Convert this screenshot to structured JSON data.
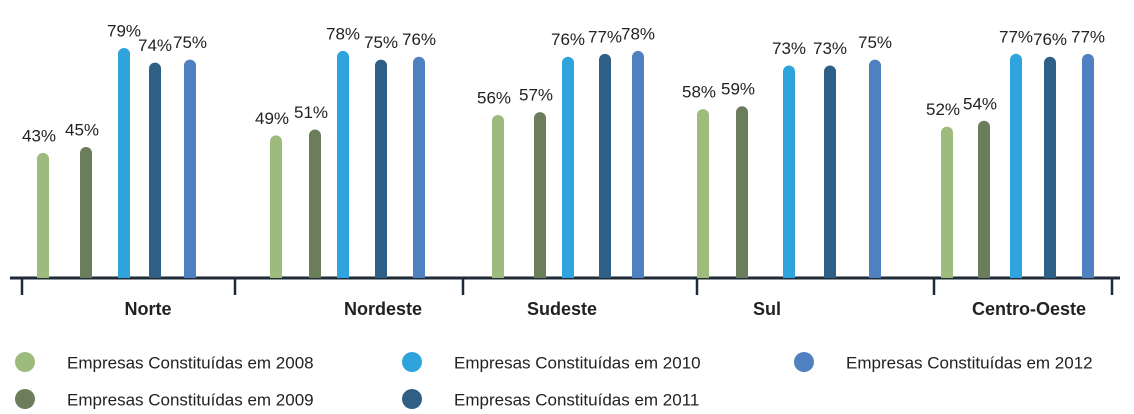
{
  "chart_data": {
    "type": "bar",
    "categories": [
      "Norte",
      "Nordeste",
      "Sudeste",
      "Sul",
      "Centro-Oeste"
    ],
    "series": [
      {
        "name": "Empresas Constituídas em 2008",
        "color": "#9dbb7d",
        "values": [
          43,
          49,
          56,
          58,
          52
        ],
        "value_labels": [
          "43%",
          "49%",
          "56%",
          "58%",
          "52%"
        ]
      },
      {
        "name": "Empresas Constituídas em 2009",
        "color": "#6b7d5a",
        "values": [
          45,
          51,
          57,
          59,
          54
        ],
        "value_labels": [
          "45%",
          "51%",
          "57%",
          "59%",
          "54%"
        ]
      },
      {
        "name": "Empresas Constituídas em 2010",
        "color": "#2ea3dc",
        "values": [
          79,
          78,
          76,
          73,
          77
        ],
        "value_labels": [
          "79%",
          "78%",
          "76%",
          "73%",
          "77%"
        ]
      },
      {
        "name": "Empresas Constituídas em 2011",
        "color": "#2f5f85",
        "values": [
          74,
          75,
          77,
          73,
          76
        ],
        "value_labels": [
          "74%",
          "75%",
          "77%",
          "73%",
          "76%"
        ]
      },
      {
        "name": "Empresas Constituídas em 2012",
        "color": "#4f81c0",
        "values": [
          75,
          76,
          78,
          75,
          77
        ],
        "value_labels": [
          "75%",
          "76%",
          "78%",
          "75%",
          "77%"
        ]
      }
    ],
    "ylim": [
      0,
      90
    ]
  }
}
